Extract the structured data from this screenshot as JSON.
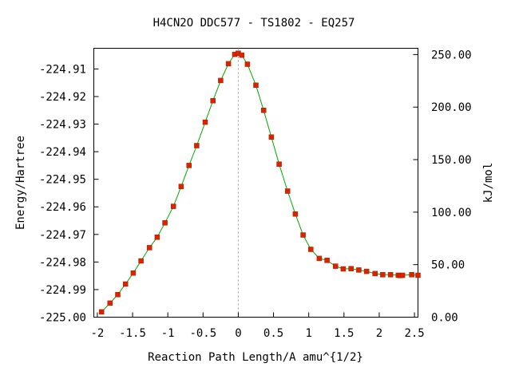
{
  "chart_data": {
    "type": "scatter",
    "title": "H4CN2O   DDC577 - TS1802 - EQ257",
    "xlabel": "Reaction Path Length/A amu^{1/2}",
    "ylabel": "Energy/Hartree",
    "y2label": "kJ/mol",
    "xlim": [
      -2.05,
      2.55
    ],
    "ylim": [
      -225.0,
      -224.9025
    ],
    "y2lim": [
      0.0,
      256.0
    ],
    "grid": false,
    "legend": "none",
    "transition_state_x": 0.0,
    "x_ticks": [
      -2,
      -1.5,
      -1,
      -0.5,
      0,
      0.5,
      1,
      1.5,
      2,
      2.5
    ],
    "x_tick_labels": [
      "-2",
      "-1.5",
      "-1",
      "-0.5",
      "0",
      "0.5",
      "1",
      "1.5",
      "2",
      "2.5"
    ],
    "y_ticks": [
      -224.91,
      -224.92,
      -224.93,
      -224.94,
      -224.95,
      -224.96,
      -224.97,
      -224.98,
      -224.99,
      -225.0
    ],
    "y_tick_labels": [
      "-224.91",
      "-224.92",
      "-224.93",
      "-224.94",
      "-224.95",
      "-224.96",
      "-224.97",
      "-224.98",
      "-224.99",
      "-225.00"
    ],
    "y2_ticks": [
      250,
      200,
      150,
      100,
      50,
      0
    ],
    "y2_tick_labels": [
      "250.00",
      "200.00",
      "150.00",
      "100.00",
      "50.00",
      "0.00"
    ],
    "series": [
      {
        "color_line": "#00aa00",
        "color_marker": "#dd2200",
        "x": [
          -1.94,
          -1.82,
          -1.71,
          -1.6,
          -1.49,
          -1.38,
          -1.26,
          -1.15,
          -1.04,
          -0.92,
          -0.81,
          -0.7,
          -0.59,
          -0.47,
          -0.36,
          -0.25,
          -0.14,
          -0.05,
          0.0,
          0.05,
          0.13,
          0.25,
          0.36,
          0.47,
          0.58,
          0.7,
          0.81,
          0.92,
          1.03,
          1.15,
          1.26,
          1.38,
          1.49,
          1.6,
          1.71,
          1.82,
          1.94,
          2.05,
          2.16,
          2.27,
          2.3,
          2.33,
          2.46,
          2.55
        ],
        "y": [
          -224.9981,
          -224.9949,
          -224.9918,
          -224.988,
          -224.984,
          -224.9796,
          -224.9748,
          -224.971,
          -224.9658,
          -224.9598,
          -224.9526,
          -224.945,
          -224.9378,
          -224.9293,
          -224.9215,
          -224.9142,
          -224.9081,
          -224.9047,
          -224.9043,
          -224.905,
          -224.9083,
          -224.9159,
          -224.925,
          -224.9347,
          -224.9445,
          -224.9543,
          -224.9626,
          -224.9702,
          -224.9754,
          -224.9787,
          -224.9794,
          -224.9815,
          -224.9825,
          -224.9824,
          -224.9829,
          -224.9834,
          -224.9842,
          -224.9846,
          -224.9846,
          -224.9848,
          -224.9849,
          -224.9848,
          -224.9846,
          -224.9848
        ]
      }
    ]
  }
}
